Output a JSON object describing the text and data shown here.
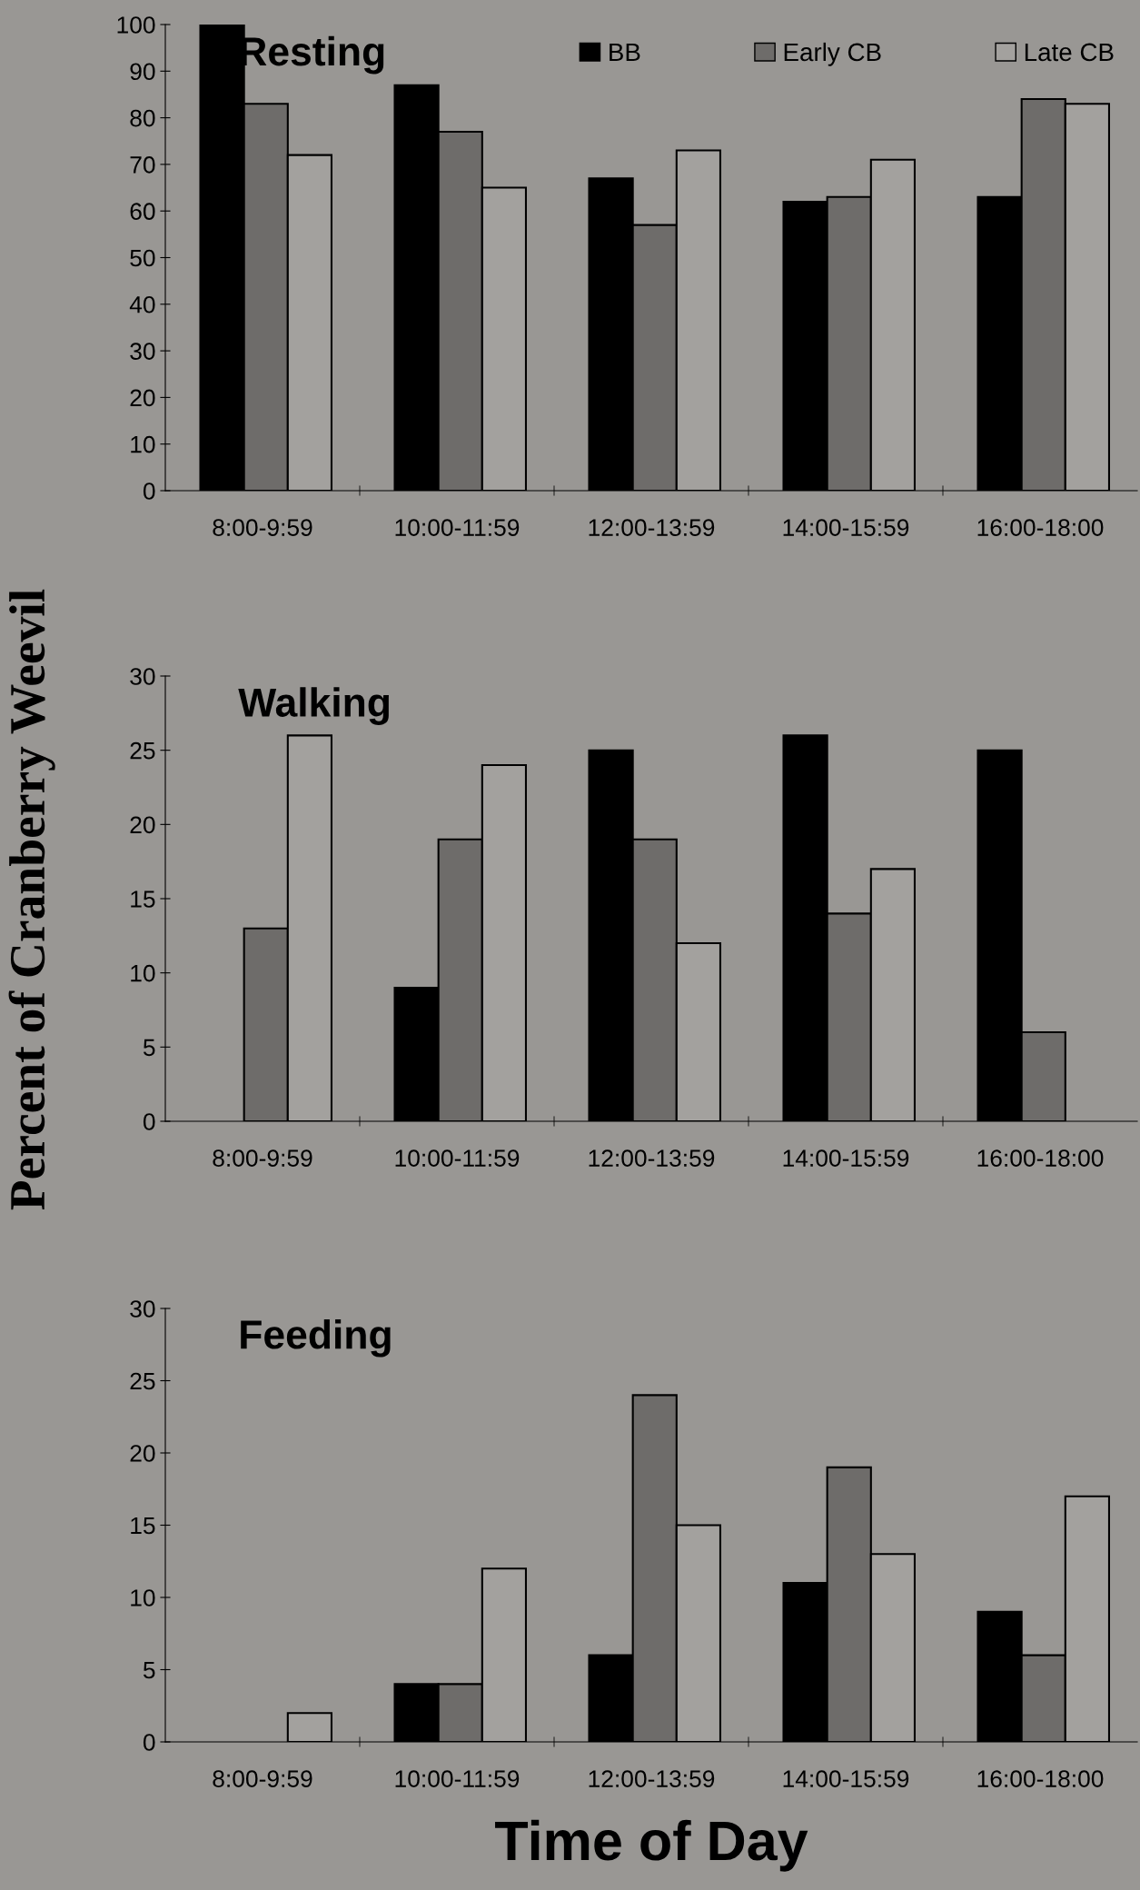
{
  "chart_data": [
    {
      "type": "bar",
      "title": "Resting",
      "categories": [
        "8:00-9:59",
        "10:00-11:59",
        "12:00-13:59",
        "14:00-15:59",
        "16:00-18:00"
      ],
      "series": [
        {
          "name": "BB",
          "color": "#000000",
          "values": [
            100,
            87,
            67,
            62,
            63
          ]
        },
        {
          "name": "Early CB",
          "color": "#6e6c6a",
          "values": [
            83,
            77,
            57,
            63,
            84
          ]
        },
        {
          "name": "Late CB",
          "color": "#a3a19e",
          "values": [
            72,
            65,
            73,
            71,
            83
          ]
        }
      ],
      "ylim": [
        0,
        100
      ],
      "yticks": [
        0,
        10,
        20,
        30,
        40,
        50,
        60,
        70,
        80,
        90,
        100
      ],
      "legend": "top right",
      "grid": false
    },
    {
      "type": "bar",
      "title": "Walking",
      "ylabel": "Percent of Cranberry Weevil",
      "categories": [
        "8:00-9:59",
        "10:00-11:59",
        "12:00-13:59",
        "14:00-15:59",
        "16:00-18:00"
      ],
      "series": [
        {
          "color": "#000000",
          "values": [
            0,
            9,
            25,
            26,
            25
          ]
        },
        {
          "color": "#6e6c6a",
          "values": [
            13,
            19,
            19,
            14,
            6
          ]
        },
        {
          "color": "#a3a19e",
          "values": [
            26,
            24,
            12,
            17,
            0
          ]
        }
      ],
      "ylim": [
        0,
        30
      ],
      "yticks": [
        0,
        5,
        10,
        15,
        20,
        25,
        30
      ],
      "grid": false
    },
    {
      "type": "bar",
      "title": "Feeding",
      "xlabel": "Time of Day",
      "categories": [
        "8:00-9:59",
        "10:00-11:59",
        "12:00-13:59",
        "14:00-15:59",
        "16:00-18:00"
      ],
      "series": [
        {
          "color": "#000000",
          "values": [
            0,
            4,
            6,
            11,
            9
          ]
        },
        {
          "color": "#6e6c6a",
          "values": [
            0,
            4,
            24,
            19,
            6
          ]
        },
        {
          "color": "#a3a19e",
          "values": [
            2,
            12,
            15,
            13,
            17
          ]
        }
      ],
      "ylim": [
        0,
        30
      ],
      "yticks": [
        0,
        5,
        10,
        15,
        20,
        25,
        30
      ],
      "grid": false
    }
  ]
}
